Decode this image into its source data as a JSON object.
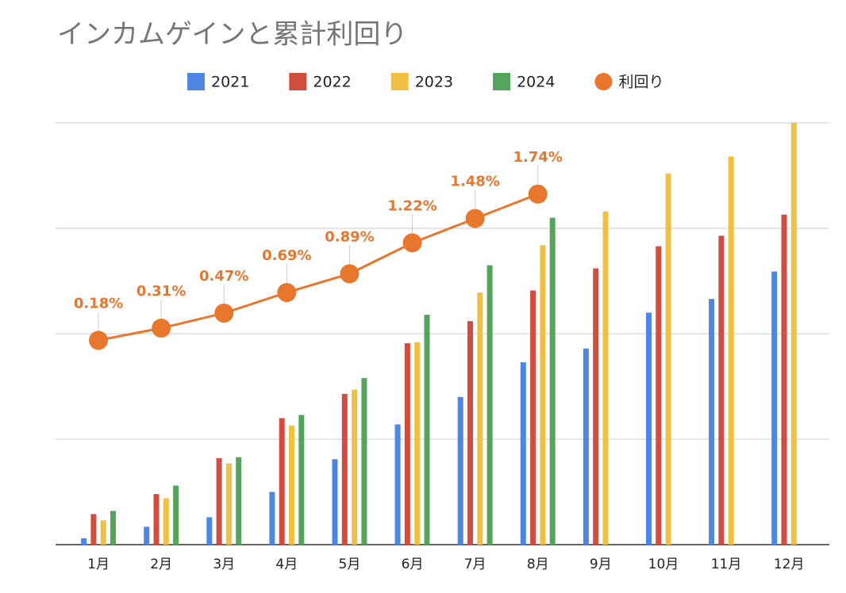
{
  "chart_data": {
    "type": "bar",
    "title": "インカムゲインと累計利回り",
    "categories": [
      "1月",
      "2月",
      "3月",
      "4月",
      "5月",
      "6月",
      "7月",
      "8月",
      "9月",
      "10月",
      "11月",
      "12月"
    ],
    "series": [
      {
        "name": "2021",
        "color": "#4e86e4",
        "values": [
          0.06,
          0.17,
          0.26,
          0.5,
          0.81,
          1.14,
          1.4,
          1.73,
          1.86,
          2.2,
          2.33,
          2.59
        ]
      },
      {
        "name": "2022",
        "color": "#d24c3f",
        "values": [
          0.29,
          0.48,
          0.82,
          1.2,
          1.43,
          1.91,
          2.12,
          2.41,
          2.62,
          2.83,
          2.93,
          3.13
        ]
      },
      {
        "name": "2023",
        "color": "#f0c043",
        "values": [
          0.23,
          0.44,
          0.77,
          1.13,
          1.47,
          1.92,
          2.39,
          2.84,
          3.16,
          3.52,
          3.68,
          4.0
        ]
      },
      {
        "name": "2024",
        "color": "#55a45c",
        "values": [
          0.32,
          0.56,
          0.83,
          1.23,
          1.58,
          2.18,
          2.65,
          3.1,
          null,
          null,
          null,
          null
        ]
      },
      {
        "name": "利回り",
        "color": "#e8762d",
        "type": "line",
        "axis": "y2",
        "values": [
          0.18,
          0.31,
          0.47,
          0.69,
          0.89,
          1.22,
          1.48,
          1.74,
          null,
          null,
          null,
          null
        ],
        "value_labels": [
          "0.18%",
          "0.31%",
          "0.47%",
          "0.69%",
          "0.89%",
          "1.22%",
          "1.48%",
          "1.74%",
          null,
          null,
          null,
          null
        ]
      }
    ],
    "ylim": [
      0,
      4
    ],
    "yticks": [
      0,
      1,
      2,
      3,
      4
    ],
    "y2lim": [
      -2,
      2.5
    ],
    "grid": true,
    "legend": "top"
  }
}
